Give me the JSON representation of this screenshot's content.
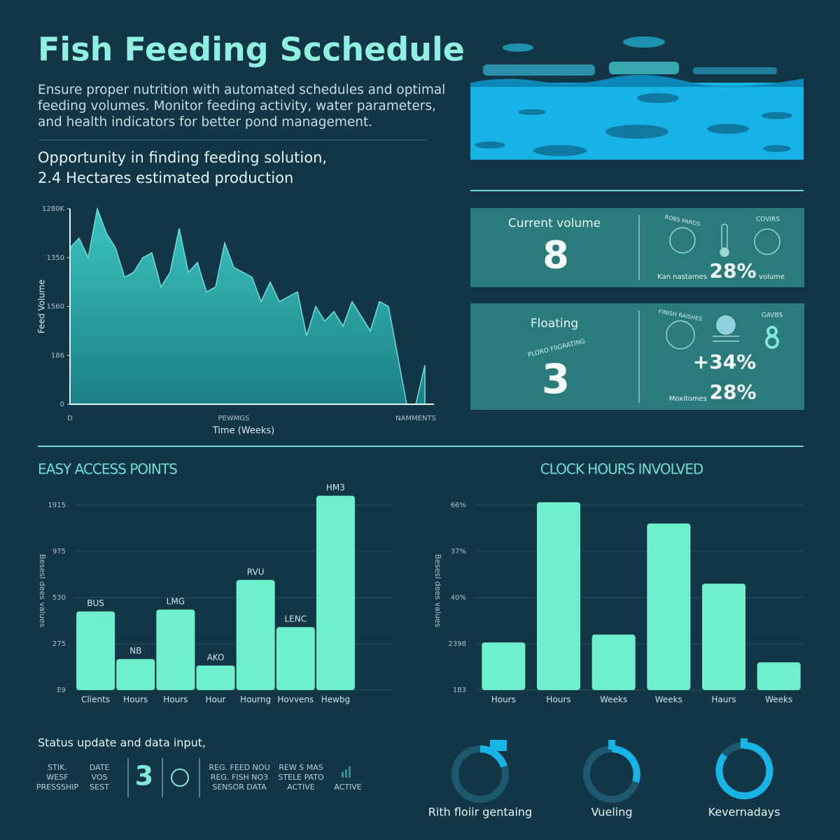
{
  "header": {
    "title": "Fish Feeding Scchedule",
    "description_lines": [
      "Ensure proper nutrition with automated schedules and optimal",
      "feeding volumes. Monitor feeding activity, water parameters,",
      "and health indicators for better pond management."
    ],
    "subtitle_lines": [
      "Opportunity in finding feeding solution,",
      "2.4 Hectares estimated production"
    ]
  },
  "cards": [
    {
      "title": "Current volume",
      "value": 8,
      "icon_label_1": "ROBS PAROS",
      "icon_label_2": "COVIRS",
      "stat_label": "Kan nastames",
      "stat": "28%",
      "stat_unit": "volume"
    },
    {
      "title": "Floating",
      "arc_label": "PLORO FIIGRATING",
      "value": 3,
      "icon_label_1": "FINISH RAISHES",
      "icon_label_2": "GAVBS",
      "stat_1": "+34%",
      "stat_2_label": "Moxitomes",
      "stat_2": "28%"
    }
  ],
  "chart_data": [
    {
      "type": "area",
      "y_label": "Feed Volume",
      "x_label": "Time (Weeks)",
      "color": "#2fb3b3",
      "x": [
        0,
        1,
        2,
        3,
        4,
        5,
        6,
        7,
        8,
        9,
        10,
        11,
        12,
        13,
        14,
        15,
        16,
        17,
        18,
        19,
        20,
        21,
        22,
        23,
        24,
        25,
        26,
        27,
        28,
        29,
        30,
        31,
        32,
        33,
        34,
        35,
        36,
        37,
        38,
        39
      ],
      "values": [
        3.2,
        3.4,
        3.0,
        4.0,
        3.5,
        3.2,
        2.6,
        2.7,
        3.0,
        3.1,
        2.4,
        2.7,
        3.6,
        2.7,
        2.9,
        2.3,
        2.4,
        3.3,
        2.8,
        2.7,
        2.6,
        2.1,
        2.5,
        2.1,
        2.2,
        2.3,
        1.4,
        2.0,
        1.7,
        1.9,
        1.6,
        2.1,
        1.8,
        1.5,
        2.1,
        2.0,
        1.0,
        0.0,
        0.0,
        0.8
      ],
      "xlim": [
        0,
        40
      ],
      "ylim": [
        0,
        4
      ],
      "xticks": [
        {
          "value": 0,
          "label": "D"
        },
        {
          "value": 18,
          "label": "PEWMGS"
        },
        {
          "value": 38,
          "label": "NAMMENTS"
        }
      ],
      "yticks": [
        {
          "value": 0,
          "label": "0"
        },
        {
          "value": 1,
          "label": "186"
        },
        {
          "value": 2,
          "label": "1560"
        },
        {
          "value": 3,
          "label": "1350"
        },
        {
          "value": 4,
          "label": "1280K"
        }
      ]
    },
    {
      "type": "bar",
      "title": "EASY ACCESS POINTS",
      "y_label": "Besesl dees values",
      "color": "#6ff0cc",
      "categories": [
        "Clients",
        "Hours",
        "Hours",
        "Hour",
        "Hourng",
        "Hovvens",
        "Hewbg"
      ],
      "values": [
        1.7,
        0.67,
        1.74,
        0.53,
        2.38,
        1.36,
        4.2
      ],
      "bar_labels": [
        "BUS",
        "NB",
        "LMG",
        "AKO",
        "RVU",
        "LENC",
        "HM3"
      ],
      "ylim": [
        0,
        4.3
      ],
      "grid": true,
      "yticks": [
        {
          "value": 0,
          "label": "E9"
        },
        {
          "value": 1,
          "label": "275"
        },
        {
          "value": 2,
          "label": "530"
        },
        {
          "value": 3,
          "label": "975"
        },
        {
          "value": 4,
          "label": "1915"
        }
      ]
    },
    {
      "type": "bar",
      "title": "CLOCK HOURS INVOLVED",
      "y_label": "Besesl dees values",
      "color": "#6ff0cc",
      "categories": [
        "Hours",
        "Hours",
        "Weeks",
        "Weeks",
        "Haurs",
        "Weeks"
      ],
      "values": [
        1.03,
        4.06,
        1.2,
        3.6,
        2.3,
        0.6
      ],
      "ylim": [
        0,
        4.3
      ],
      "grid": true,
      "yticks": [
        {
          "value": 0,
          "label": "183"
        },
        {
          "value": 1,
          "label": "2398"
        },
        {
          "value": 2,
          "label": "40%"
        },
        {
          "value": 3,
          "label": "37%"
        },
        {
          "value": 4,
          "label": "66%"
        }
      ]
    }
  ],
  "status": {
    "heading": "Status update and data input,",
    "col1": [
      "STIK.",
      "WESF",
      "PRESSSHIP"
    ],
    "col2": [
      "DATE",
      "VOS",
      "SEST"
    ],
    "count": 3,
    "col3": [
      "REG. FEED NOU",
      "REG. FISH NO3",
      "SENSOR DATA"
    ],
    "col4": [
      "REW S MAS",
      "STELE PATO",
      "ACTIVE"
    ],
    "col5": "ACTIVE"
  },
  "rings": [
    "Rith floiir gentaing",
    "Vueling",
    "Kevernadays"
  ]
}
